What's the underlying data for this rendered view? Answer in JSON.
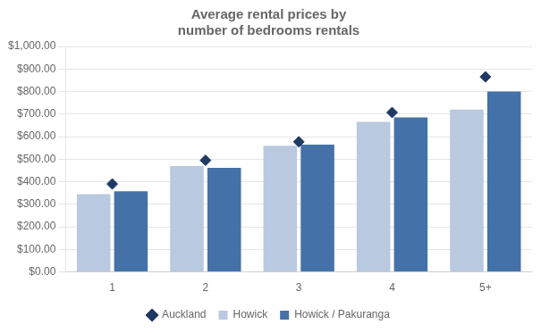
{
  "chart_data": {
    "type": "bar",
    "title": "Average rental prices by\nnumber of bedrooms rentals",
    "categories": [
      "1",
      "2",
      "3",
      "4",
      "5+"
    ],
    "series": [
      {
        "name": "Howick",
        "color": "#b8c9e0",
        "values": [
          345,
          470,
          560,
          665,
          720
        ]
      },
      {
        "name": "Howick / Pakuranga",
        "color": "#4472a8",
        "values": [
          358,
          462,
          565,
          685,
          800
        ]
      },
      {
        "name": "Auckland",
        "type": "scatter",
        "marker": "diamond",
        "color": "#1f3864",
        "values": [
          390,
          495,
          577,
          707,
          865
        ]
      }
    ],
    "ylim": [
      0,
      1000
    ],
    "yticks": [
      {
        "value": 0,
        "label": "$0.00"
      },
      {
        "value": 100,
        "label": "$100.00"
      },
      {
        "value": 200,
        "label": "$200.00"
      },
      {
        "value": 300,
        "label": "$300.00"
      },
      {
        "value": 400,
        "label": "$400.00"
      },
      {
        "value": 500,
        "label": "$500.00"
      },
      {
        "value": 600,
        "label": "$600.00"
      },
      {
        "value": 700,
        "label": "$700.00"
      },
      {
        "value": 800,
        "label": "$800.00"
      },
      {
        "value": 900,
        "label": "$900.00"
      },
      {
        "value": 1000,
        "label": "$1,000.00"
      }
    ],
    "grid": true,
    "legend": "bottom"
  }
}
